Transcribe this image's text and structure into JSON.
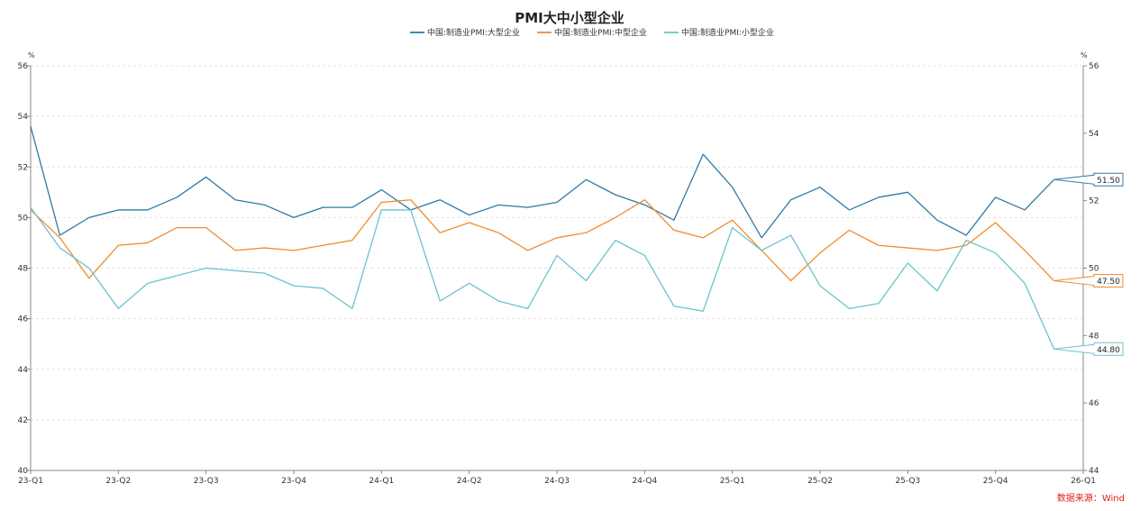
{
  "chart_data": {
    "type": "line",
    "title": "PMI大中小型企业",
    "source": "数据来源：Wind",
    "left_unit": "%",
    "right_unit": "%",
    "left_axis": {
      "ylim": [
        40,
        56
      ],
      "ticks": [
        40,
        42,
        44,
        46,
        48,
        50,
        52,
        54,
        56
      ]
    },
    "right_axis": {
      "ylim": [
        44,
        56
      ],
      "ticks": [
        44,
        46,
        48,
        50,
        52,
        54,
        56
      ]
    },
    "grid": true,
    "legend_position": "top",
    "x_tick_labels": [
      "23-Q1",
      "23-Q2",
      "23-Q3",
      "23-Q4",
      "24-Q1",
      "24-Q2",
      "24-Q3",
      "24-Q4",
      "25-Q1",
      "25-Q2",
      "25-Q3",
      "25-Q4",
      "26-Q1"
    ],
    "x": [
      "2023-01",
      "2023-02",
      "2023-03",
      "2023-04",
      "2023-05",
      "2023-06",
      "2023-07",
      "2023-08",
      "2023-09",
      "2023-10",
      "2023-11",
      "2023-12",
      "2024-01",
      "2024-02",
      "2024-03",
      "2024-04",
      "2024-05",
      "2024-06",
      "2024-07",
      "2024-08",
      "2024-09",
      "2024-10",
      "2024-11",
      "2024-12",
      "2025-01",
      "2025-02",
      "2025-03",
      "2025-04",
      "2025-05",
      "2025-06",
      "2025-07",
      "2025-08",
      "2025-09",
      "2025-10",
      "2025-11",
      "2025-12",
      "2026-01"
    ],
    "series": [
      {
        "name": "中国:制造业PMI:大型企业",
        "color": "#2e7aa6",
        "axis": "left",
        "end_label": "51.50",
        "values": [
          53.6,
          49.3,
          50.0,
          50.3,
          50.3,
          50.8,
          51.6,
          50.7,
          50.5,
          50.0,
          50.4,
          50.4,
          51.1,
          50.3,
          50.7,
          50.1,
          50.5,
          50.4,
          50.6,
          51.5,
          50.9,
          50.5,
          49.9,
          52.5,
          51.2,
          49.2,
          50.7,
          51.2,
          50.3,
          50.8,
          51.0,
          49.9,
          49.3,
          50.8,
          50.3,
          51.5,
          null
        ]
      },
      {
        "name": "中国:制造业PMI:中型企业",
        "color": "#f08c2e",
        "axis": "left",
        "end_label": "47.50",
        "values": [
          50.3,
          49.2,
          47.6,
          48.9,
          49.0,
          49.6,
          49.6,
          48.7,
          48.8,
          48.7,
          48.9,
          49.1,
          50.6,
          50.7,
          49.4,
          49.8,
          49.4,
          48.7,
          49.2,
          49.4,
          50.0,
          50.7,
          49.5,
          49.2,
          49.9,
          48.7,
          47.5,
          48.6,
          49.5,
          48.9,
          48.8,
          48.7,
          48.9,
          49.8,
          48.7,
          47.5,
          null
        ]
      },
      {
        "name": "中国:制造业PMI:小型企业",
        "color": "#6cc3cc",
        "axis": "left",
        "end_label": "44.80",
        "values": [
          50.4,
          48.8,
          48.0,
          46.4,
          47.4,
          47.7,
          48.0,
          47.9,
          47.8,
          47.3,
          47.2,
          46.4,
          50.3,
          50.3,
          46.7,
          47.4,
          46.7,
          46.4,
          48.5,
          47.5,
          49.1,
          48.5,
          46.5,
          46.3,
          49.6,
          48.7,
          49.3,
          47.3,
          46.4,
          46.6,
          48.2,
          47.1,
          49.1,
          48.6,
          47.4,
          44.8,
          null
        ]
      }
    ]
  }
}
